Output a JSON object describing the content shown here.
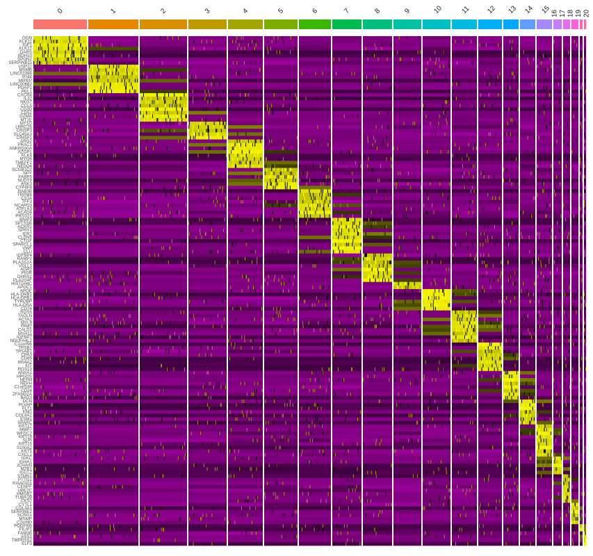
{
  "chart_data": {
    "type": "heatmap",
    "title": "",
    "xlabel": "",
    "ylabel": "",
    "color_scale": {
      "low": "#FF00FF",
      "mid": "#000000",
      "high": "#FFFF00"
    },
    "legend": "none",
    "clusters": [
      "0",
      "1",
      "2",
      "3",
      "4",
      "5",
      "6",
      "7",
      "8",
      "9",
      "10",
      "11",
      "12",
      "13",
      "14",
      "15",
      "16",
      "17",
      "18",
      "19",
      "20"
    ],
    "cluster_colors": [
      "#F8766D",
      "#E58700",
      "#D89000",
      "#C09B00",
      "#A3A500",
      "#7CAE00",
      "#39B600",
      "#00BB4E",
      "#00BF7D",
      "#00C1A3",
      "#00BFC4",
      "#00BAE0",
      "#00B0F6",
      "#00A9FF",
      "#619CFF",
      "#A58AFF",
      "#C77CFF",
      "#E76BF3",
      "#FA62DB",
      "#FF62BC",
      "#FF6C91"
    ],
    "marker_groups": [
      {
        "cluster": "0",
        "genes": [
          "OGN",
          "KLK11",
          "IGF1",
          "KLK12",
          "DARS",
          "BDH10",
          "SPON2",
          "SERPINB11"
        ]
      },
      {
        "cluster": "1",
        "genes": [
          "USP22",
          "MSMB",
          "LINC01088",
          "IFI44",
          "MIPEP",
          "LINC00662",
          "PDAP1",
          "PEL1"
        ]
      },
      {
        "cluster": "2",
        "genes": [
          "CXCR4",
          "IL32",
          "NKG7",
          "CCL5",
          "CD3D",
          "CD52",
          "GZMA",
          "MT1E"
        ]
      },
      {
        "cluster": "3",
        "genes": [
          "MT1G",
          "LRRC26",
          "CRISP3",
          "SLC45A3",
          "CRISP1"
        ]
      },
      {
        "cluster": "4",
        "genes": [
          "ARG2",
          "PRAC1",
          "ANKRD30A",
          "AZGP1",
          "KLK4",
          "MYO6",
          "TMEFF2",
          "NEDD4"
        ]
      },
      {
        "cluster": "5",
        "genes": [
          "SCGB1D2",
          "NPY",
          "FABP5",
          "NUDT8",
          "ANK3",
          "CYP4F8"
        ]
      },
      {
        "cluster": "6",
        "genes": [
          "RAB3B",
          "TRPM8",
          "CSTA",
          "TFF3",
          "NCAPD3",
          "ATP1A3",
          "ACAD8",
          "PRSS21"
        ]
      },
      {
        "cluster": "7",
        "genes": [
          "BNIP3",
          "SPTSSB",
          "ACKR1",
          "SPRY1",
          "IER2",
          "CLDN5",
          "CTGF",
          "SPARCL1",
          "VWF",
          "CLU"
        ]
      },
      {
        "cluster": "8",
        "genes": [
          "IGFBP4",
          "RAMP2",
          "PLA2G2A",
          "VGLL3",
          "AGR2",
          "PIGR",
          "DHRS2",
          "PLA2G4F"
        ]
      },
      {
        "cluster": "9",
        "genes": [
          "HIST1H4C",
          "APOC1"
        ]
      },
      {
        "cluster": "10",
        "genes": [
          "APOE",
          "HLA-DRB1",
          "HLA-DPB1",
          "TYROBP",
          "HLA-DRA",
          "CD74"
        ]
      },
      {
        "cluster": "11",
        "genes": [
          "RGS5",
          "TAGLN",
          "ACTA2",
          "MYL9",
          "TPM2",
          "CALD1",
          "MYH11",
          "IGFBP7",
          "NDUFA4L2"
        ]
      },
      {
        "cluster": "12",
        "genes": [
          "C11orf96",
          "TPSB2",
          "TPSAB1",
          "CPA3",
          "CD69",
          "MS4A2",
          "KIT",
          "RGS13"
        ]
      },
      {
        "cluster": "13",
        "genes": [
          "ANXA1",
          "HPGDS",
          "NEFM",
          "NEFH",
          "C1orf186",
          "CD24",
          "ZFAND2A",
          "BAG3"
        ]
      },
      {
        "cluster": "14",
        "genes": [
          "DCN",
          "PLVAP",
          "FLT1",
          "ENG",
          "COL4A1",
          "ESM1",
          "SPARC"
        ]
      },
      {
        "cluster": "15",
        "genes": [
          "KRT17",
          "MMP7",
          "WFDC2",
          "KRT19",
          "SLPI",
          "KRT15",
          "S100A2",
          "KRT5",
          "CXCL1"
        ]
      },
      {
        "cluster": "16",
        "genes": [
          "IGKC",
          "IGHA1",
          "JCHAIN",
          "MZB1",
          "IGLC2"
        ]
      },
      {
        "cluster": "17",
        "genes": [
          "STMN1",
          "PTTG1",
          "KIAA0101",
          "CENPF",
          "UBE2C",
          "HMGB2",
          "TUBA1B",
          "CKS2"
        ]
      },
      {
        "cluster": "18",
        "genes": [
          "CYTL1",
          "COL3A1",
          "SERPINE2",
          "SCRG1",
          "MSMP",
          "C2orf40"
        ]
      },
      {
        "cluster": "19",
        "genes": [
          "PDGFRB",
          "FILIP1"
        ]
      },
      {
        "cluster": "20",
        "genes": [
          "FAM3B",
          "ASS1",
          "TMPRSS2",
          "ELF3"
        ]
      }
    ]
  }
}
